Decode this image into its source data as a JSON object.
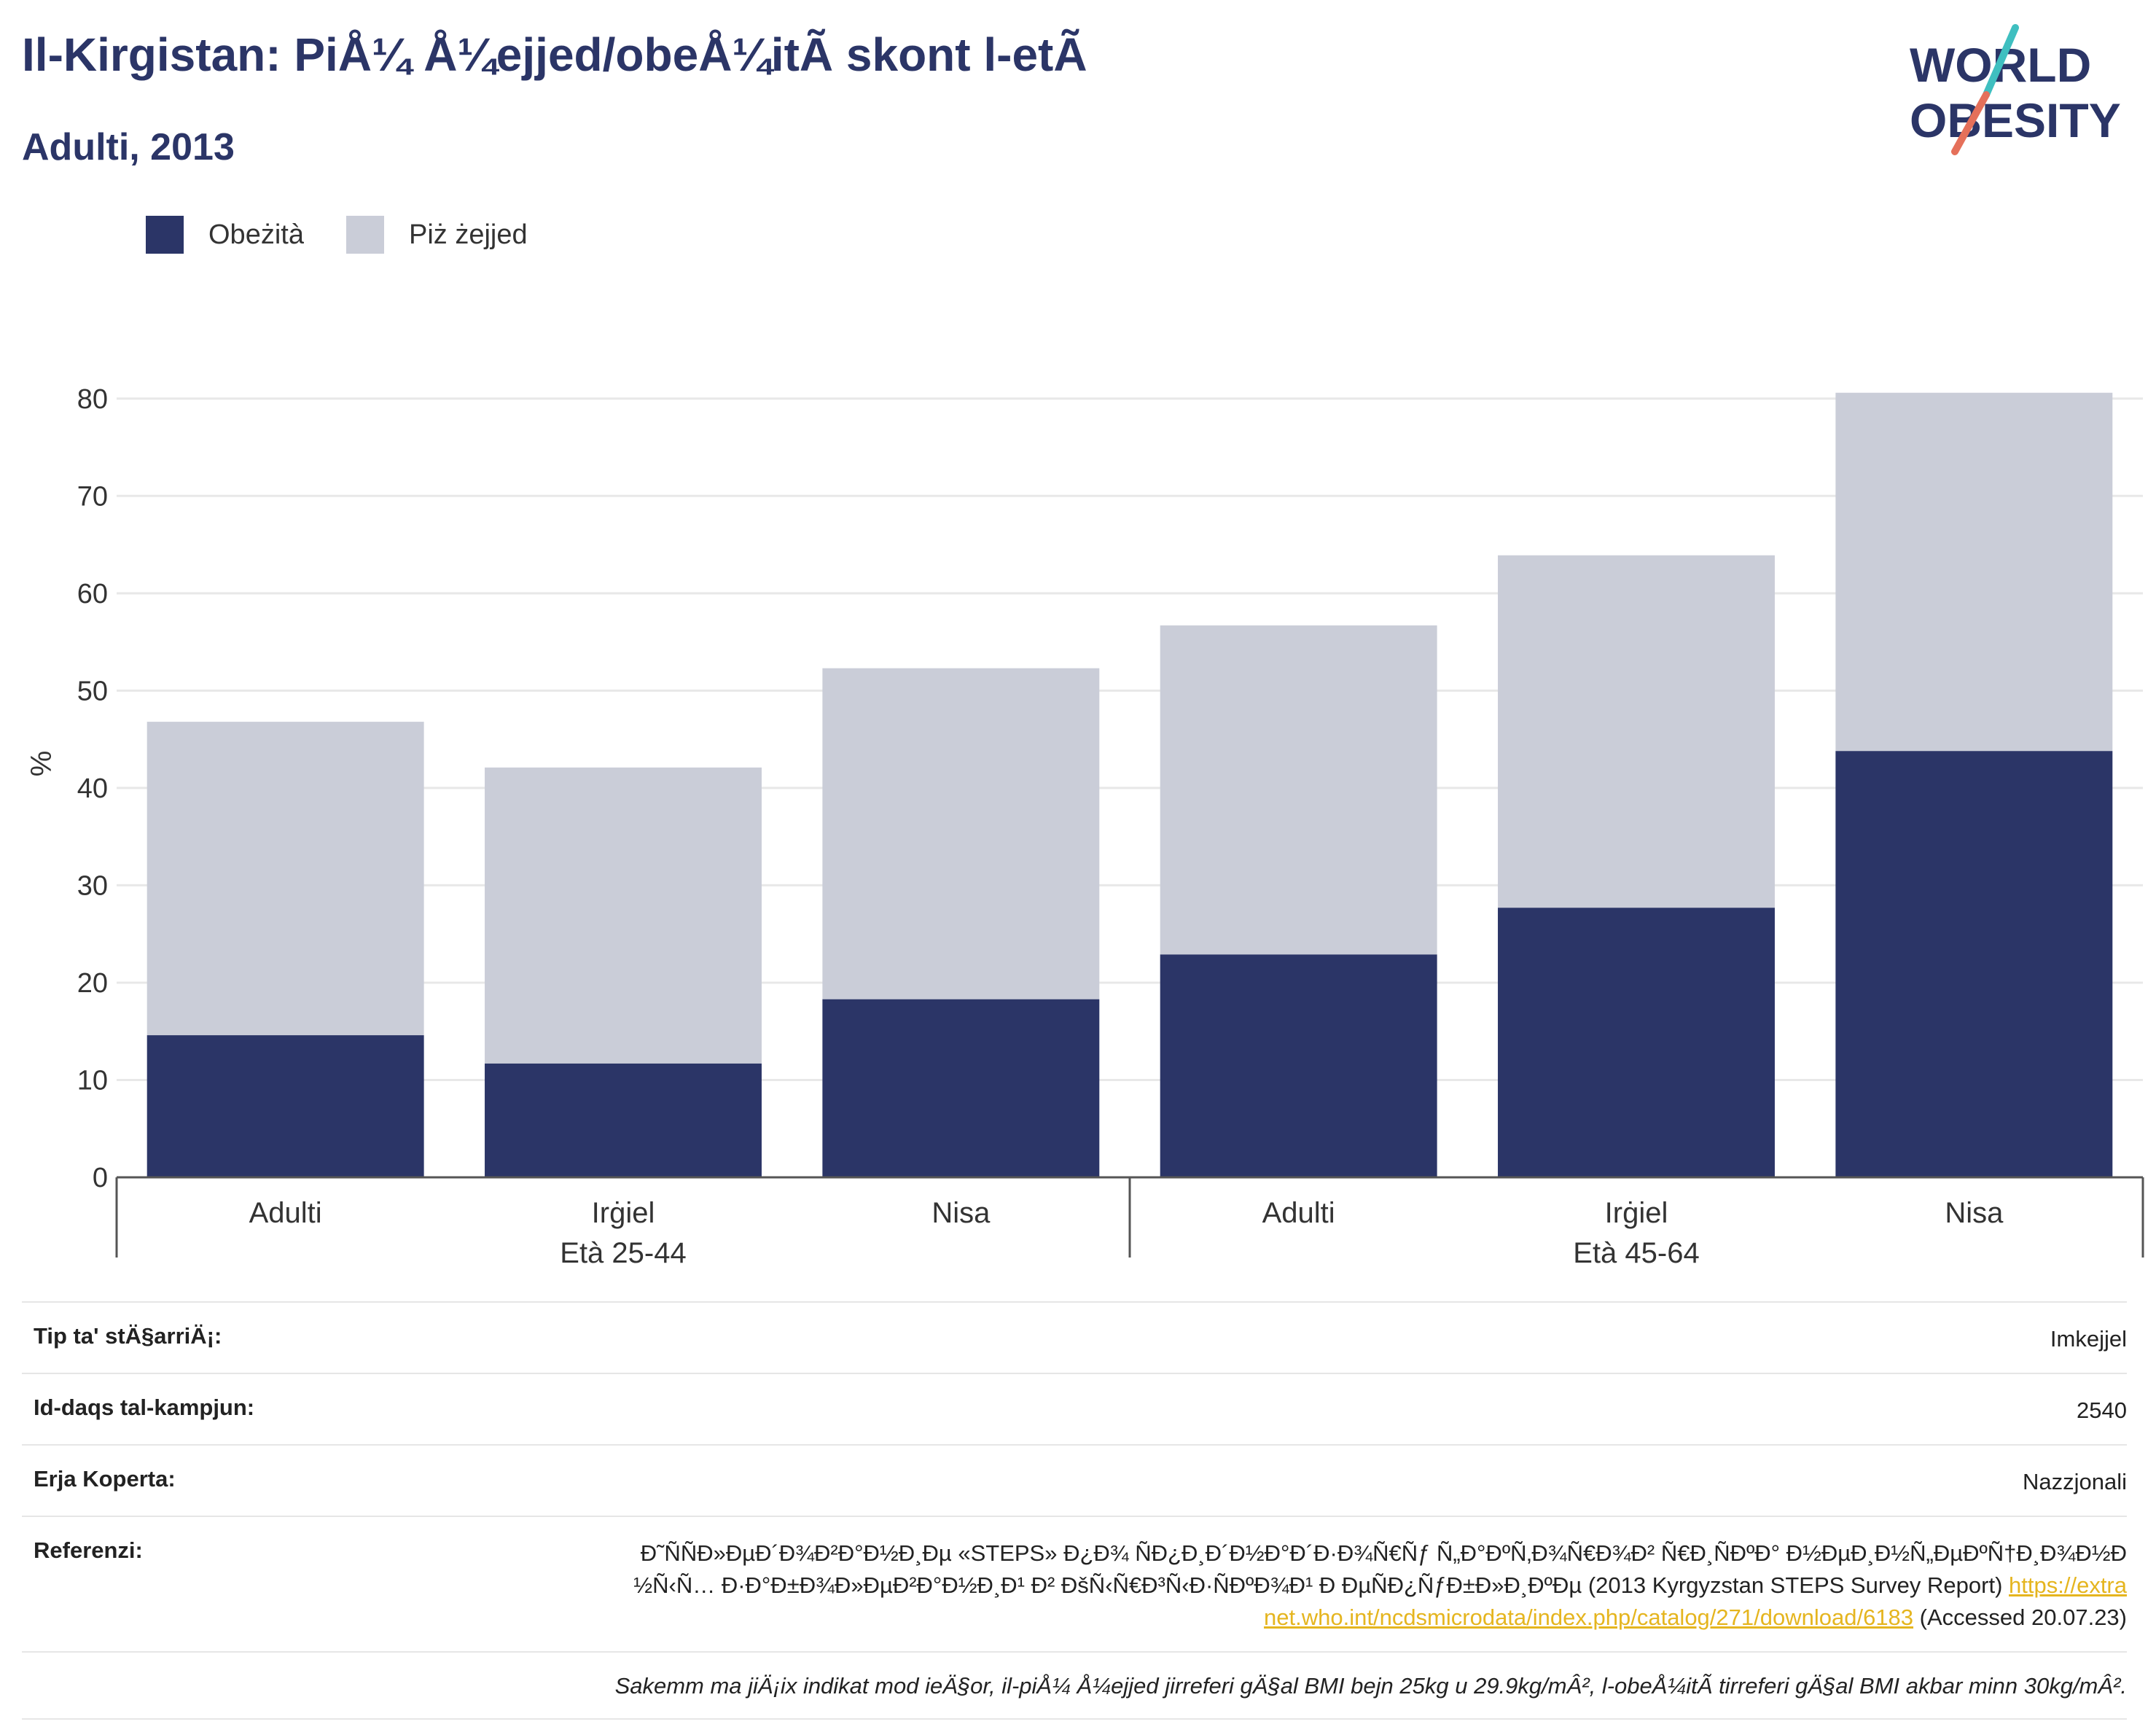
{
  "title": "Il-Kirgistan: PiÅ¼ Å¼ejjed/obeÅ¼itÃ  skont l-etÃ ",
  "subtitle": "Adulti, 2013",
  "logo": {
    "line1": "WORLD",
    "line2": "OBESITY"
  },
  "colors": {
    "obesity": "#2b3567",
    "overweight": "#cacdd8",
    "accent_line": "#e5705a",
    "accent_teal": "#3fbfc0",
    "link": "#e5b51f"
  },
  "chart_data": {
    "type": "bar",
    "stacked": true,
    "ylabel": "%",
    "ylim": [
      0,
      85
    ],
    "yticks": [
      0,
      10,
      20,
      30,
      40,
      50,
      60,
      70,
      80
    ],
    "categories": [
      "Adulti",
      "Irġiel",
      "Nisa",
      "Adulti",
      "Irġiel",
      "Nisa"
    ],
    "groups": [
      {
        "label": "Età 25-44",
        "size": 3
      },
      {
        "label": "Età 45-64",
        "size": 3
      }
    ],
    "series": [
      {
        "name": "Obeżità",
        "values": [
          14.6,
          11.7,
          18.3,
          22.9,
          27.7,
          43.8
        ]
      },
      {
        "name": "Piż żejjed",
        "values": [
          32.2,
          30.4,
          34.0,
          33.8,
          36.2,
          36.8
        ]
      }
    ],
    "grid": true,
    "legend": "top-left"
  },
  "info": {
    "rows": [
      {
        "label": "Tip ta' stÄ§arriÄ¡:",
        "value": "Imkejjel"
      },
      {
        "label": "Id-daqs tal-kampjun:",
        "value": "2540"
      },
      {
        "label": "Erja Koperta:",
        "value": "Nazzjonali"
      }
    ],
    "ref_label": "Referenzi:",
    "ref_text": "Ð˜ÑÑÐ»ÐµÐ´Ð¾Ð²Ð°Ð½Ð¸Ðµ «STEPS» Ð¿Ð¾ ÑÐ¿Ð¸Ð´Ð½Ð°Ð´Ð·Ð¾Ñ€Ñƒ Ñ„Ð°ÐºÑ‚Ð¾Ñ€Ð¾Ð² Ñ€Ð¸ÑÐºÐ° Ð½ÐµÐ¸Ð½Ñ„ÐµÐºÑ†Ð¸Ð¾Ð½Ð½Ñ‹Ñ… Ð·Ð°Ð±Ð¾Ð»ÐµÐ²Ð°Ð½Ð¸Ð¹ Ð² ÐšÑ‹Ñ€Ð³Ñ‹Ð·ÑÐºÐ¾Ð¹ Ð ÐµÑÐ¿ÑƒÐ±Ð»Ð¸ÐºÐµ (2013 Kyrgyzstan STEPS Survey Report)",
    "ref_link": "https://extranet.who.int/ncdsmicrodata/index.php/catalog/271/download/6183",
    "ref_accessed": "(Accessed 20.07.23)",
    "note": "Sakemm ma jiÄ¡ix indikat mod ieÄ§or, il-piÅ¼ Å¼ejjed jirreferi gÄ§al BMI bejn 25kg u 29.9kg/mÂ², l-obeÅ¼itÃ  tirreferi gÄ§al BMI akbar minn 30kg/mÂ²."
  }
}
